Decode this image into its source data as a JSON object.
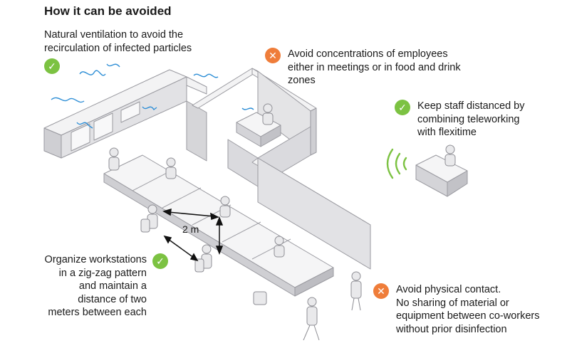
{
  "title": "How it can be avoided",
  "notes": {
    "ventilation": [
      "Natural ventilation to avoid the",
      "recirculation of infected particles"
    ],
    "concentrations": [
      "Avoid concentrations of employees",
      "either in meetings or in food and drink",
      "zones"
    ],
    "telework": [
      "Keep staff distanced by",
      "combining teleworking",
      "with flexitime"
    ],
    "zigzag": [
      "Organize workstations",
      "in a zig-zag pattern",
      "and maintain a",
      "distance of two",
      "meters between each"
    ],
    "contact": [
      "Avoid physical contact.",
      "No sharing of material or",
      "equipment between co-workers",
      "without prior disinfection"
    ]
  },
  "distance_label": "2 m",
  "badges": {
    "check": "✓",
    "cross": "✕"
  },
  "colors": {
    "ok": "#7cc242",
    "no": "#ef7d3a",
    "wall": "#e4e4e6",
    "wall_edge": "#a9a9ae",
    "air": "#2f8fd6",
    "signal": "#7cc242"
  },
  "icons": [
    "check-icon",
    "cross-icon",
    "wifi-signal-icon",
    "person-icon",
    "chair-icon",
    "air-flow-icon"
  ]
}
